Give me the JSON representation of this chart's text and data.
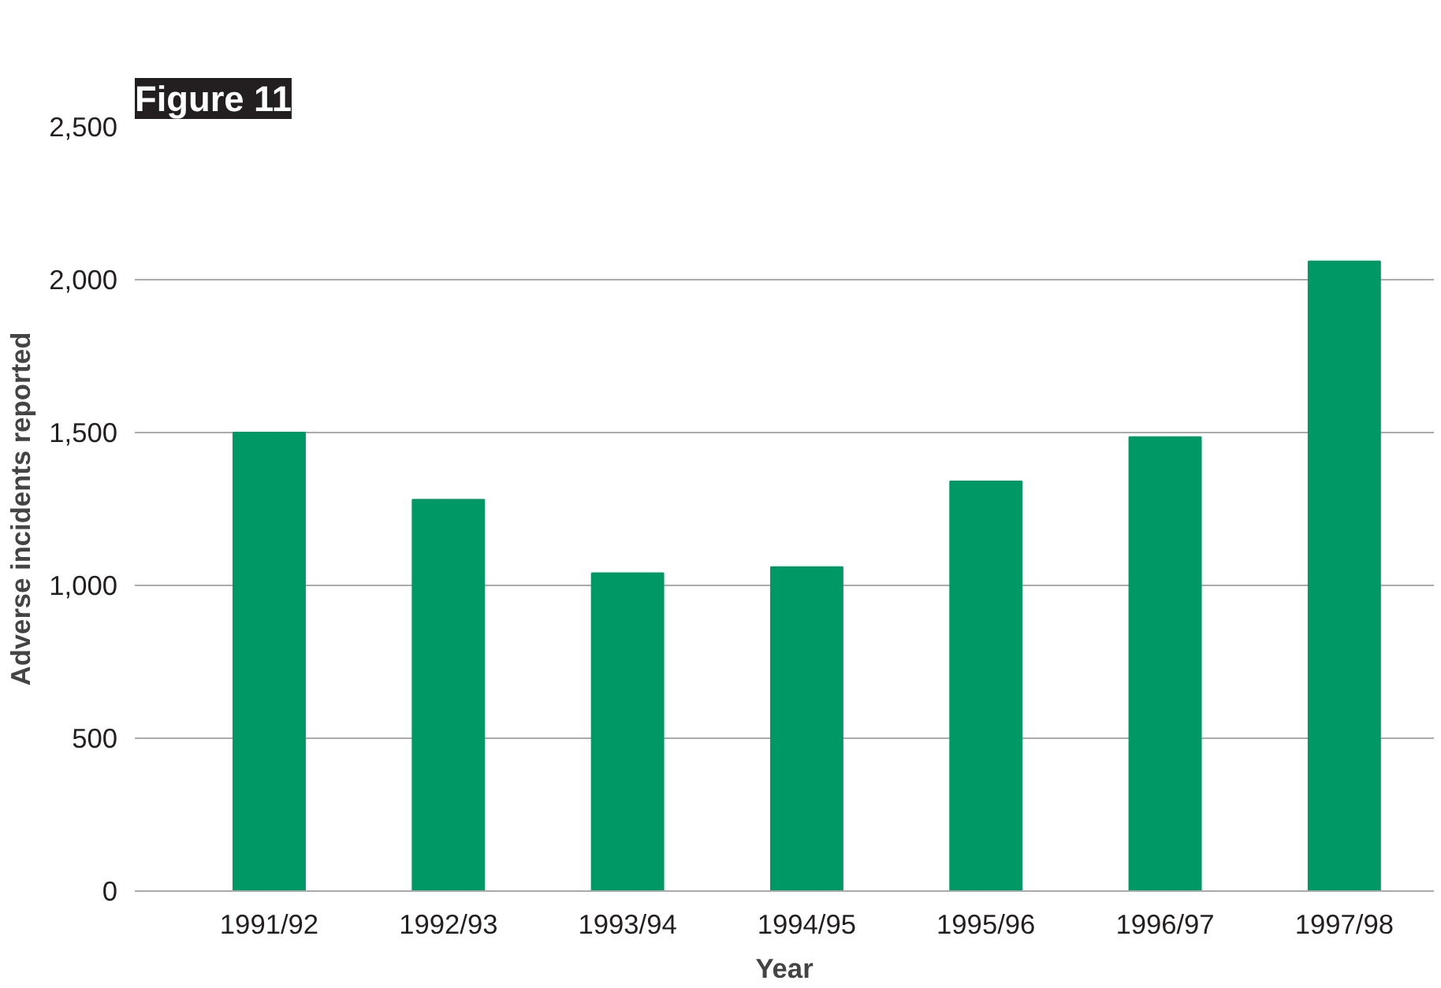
{
  "chart_data": {
    "type": "bar",
    "title": "Figure 11",
    "xlabel": "Year",
    "ylabel": "Adverse incidents reported",
    "categories": [
      "1991/92",
      "1992/93",
      "1993/94",
      "1994/95",
      "1995/96",
      "1996/97",
      "1997/98"
    ],
    "values": [
      1500,
      1280,
      1040,
      1060,
      1340,
      1485,
      2060
    ],
    "color": "#009966",
    "ylim": [
      0,
      2500
    ],
    "yticks": [
      {
        "value": 0,
        "label": "0"
      },
      {
        "value": 500,
        "label": "500"
      },
      {
        "value": 1000,
        "label": "1,000"
      },
      {
        "value": 1500,
        "label": "1,500"
      },
      {
        "value": 2000,
        "label": "2,000"
      },
      {
        "value": 2500,
        "label": "2,500"
      }
    ],
    "grid": "y"
  }
}
